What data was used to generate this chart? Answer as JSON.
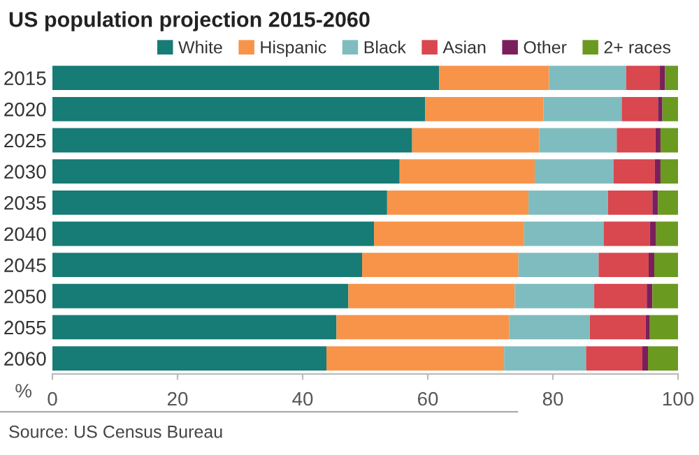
{
  "chart_data": {
    "type": "bar",
    "orientation": "horizontal",
    "stacked": true,
    "title": "US population projection 2015-2060",
    "xlabel": "%",
    "categories": [
      "2015",
      "2020",
      "2025",
      "2030",
      "2035",
      "2040",
      "2045",
      "2050",
      "2055",
      "2060"
    ],
    "series": [
      {
        "name": "White",
        "color": "#177b76",
        "values": [
          61.8,
          59.6,
          57.5,
          55.5,
          53.5,
          51.4,
          49.5,
          47.3,
          45.4,
          43.8
        ]
      },
      {
        "name": "Hispanic",
        "color": "#f7944a",
        "values": [
          17.6,
          18.9,
          20.3,
          21.6,
          22.6,
          24.0,
          25.0,
          26.6,
          27.6,
          28.4
        ]
      },
      {
        "name": "Black",
        "color": "#7fbcbf",
        "values": [
          12.3,
          12.5,
          12.4,
          12.6,
          12.7,
          12.7,
          12.8,
          12.7,
          12.9,
          13.1
        ]
      },
      {
        "name": "Asian",
        "color": "#d9474f",
        "values": [
          5.4,
          5.8,
          6.2,
          6.6,
          7.1,
          7.4,
          8.0,
          8.4,
          8.9,
          9.0
        ]
      },
      {
        "name": "Other",
        "color": "#7a1f5c",
        "values": [
          0.8,
          0.7,
          0.8,
          0.9,
          0.9,
          1.0,
          0.9,
          0.9,
          0.7,
          0.9
        ]
      },
      {
        "name": "2+ races",
        "color": "#6a9a1f",
        "values": [
          2.1,
          2.5,
          2.8,
          2.8,
          3.2,
          3.5,
          3.8,
          4.1,
          4.5,
          4.8
        ]
      }
    ],
    "xlim": [
      0,
      100
    ],
    "xticks": [
      0,
      20,
      40,
      60,
      80,
      100
    ],
    "grid": false,
    "legend": "top right",
    "annotations": [
      "Source: US Census Bureau"
    ]
  }
}
